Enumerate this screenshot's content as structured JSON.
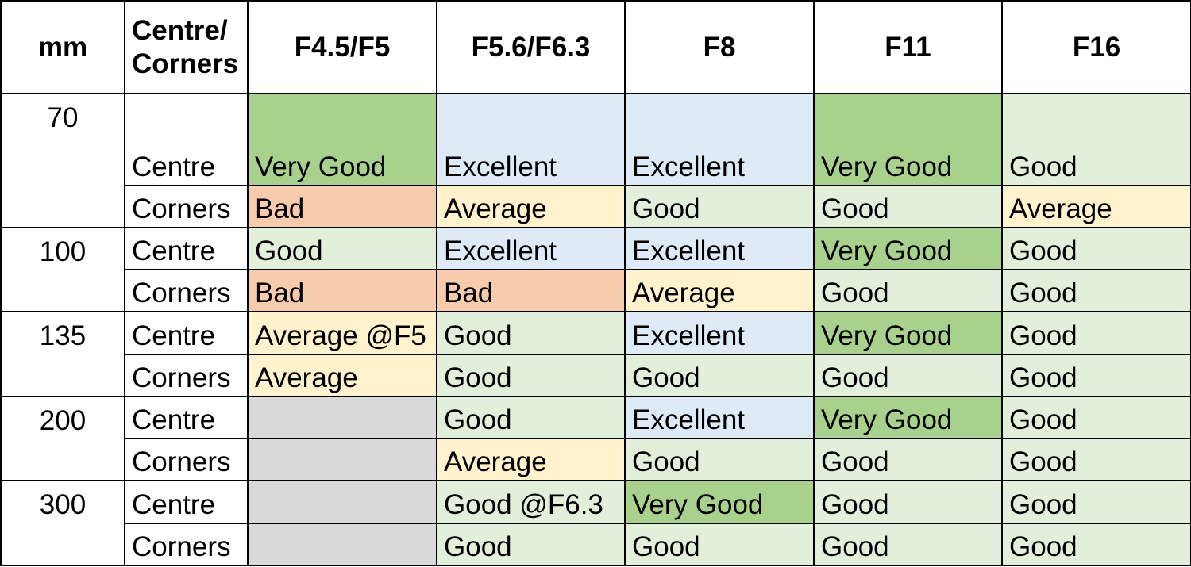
{
  "headers": [
    "mm",
    "Centre/\nCorners",
    "F4.5/F5",
    "F5.6/F6.3",
    "F8",
    "F11",
    "F16"
  ],
  "colors": {
    "Excellent": "#deebf7",
    "VeryGood": "#a9d18e",
    "Good": "#e2efda",
    "Average": "#fff2cc",
    "Bad": "#f8cbad",
    "None": "#d9d9d9"
  },
  "groups": [
    {
      "mm": "70",
      "rows": [
        {
          "position": "Centre",
          "cells": [
            {
              "text": "Very Good",
              "rating": "VeryGood"
            },
            {
              "text": "Excellent",
              "rating": "Excellent"
            },
            {
              "text": "Excellent",
              "rating": "Excellent"
            },
            {
              "text": "Very Good",
              "rating": "VeryGood"
            },
            {
              "text": "Good",
              "rating": "Good"
            }
          ]
        },
        {
          "position": "Corners",
          "cells": [
            {
              "text": "Bad",
              "rating": "Bad"
            },
            {
              "text": "Average",
              "rating": "Average"
            },
            {
              "text": "Good",
              "rating": "Good"
            },
            {
              "text": "Good",
              "rating": "Good"
            },
            {
              "text": "Average",
              "rating": "Average"
            }
          ]
        }
      ]
    },
    {
      "mm": "100",
      "rows": [
        {
          "position": "Centre",
          "cells": [
            {
              "text": "Good",
              "rating": "Good"
            },
            {
              "text": "Excellent",
              "rating": "Excellent"
            },
            {
              "text": "Excellent",
              "rating": "Excellent"
            },
            {
              "text": "Very Good",
              "rating": "VeryGood"
            },
            {
              "text": "Good",
              "rating": "Good"
            }
          ]
        },
        {
          "position": "Corners",
          "cells": [
            {
              "text": "Bad",
              "rating": "Bad"
            },
            {
              "text": "Bad",
              "rating": "Bad"
            },
            {
              "text": "Average",
              "rating": "Average"
            },
            {
              "text": "Good",
              "rating": "Good"
            },
            {
              "text": "Good",
              "rating": "Good"
            }
          ]
        }
      ]
    },
    {
      "mm": "135",
      "rows": [
        {
          "position": "Centre",
          "cells": [
            {
              "text": "Average @F5",
              "rating": "Average"
            },
            {
              "text": "Good",
              "rating": "Good"
            },
            {
              "text": "Excellent",
              "rating": "Excellent"
            },
            {
              "text": "Very Good",
              "rating": "VeryGood"
            },
            {
              "text": "Good",
              "rating": "Good"
            }
          ]
        },
        {
          "position": "Corners",
          "cells": [
            {
              "text": "Average",
              "rating": "Average"
            },
            {
              "text": "Good",
              "rating": "Good"
            },
            {
              "text": "Good",
              "rating": "Good"
            },
            {
              "text": "Good",
              "rating": "Good"
            },
            {
              "text": "Good",
              "rating": "Good"
            }
          ]
        }
      ]
    },
    {
      "mm": "200",
      "rows": [
        {
          "position": "Centre",
          "cells": [
            {
              "text": "",
              "rating": "None"
            },
            {
              "text": "Good",
              "rating": "Good"
            },
            {
              "text": "Excellent",
              "rating": "Excellent"
            },
            {
              "text": "Very Good",
              "rating": "VeryGood"
            },
            {
              "text": "Good",
              "rating": "Good"
            }
          ]
        },
        {
          "position": "Corners",
          "cells": [
            {
              "text": "",
              "rating": "None"
            },
            {
              "text": "Average",
              "rating": "Average"
            },
            {
              "text": "Good",
              "rating": "Good"
            },
            {
              "text": "Good",
              "rating": "Good"
            },
            {
              "text": "Good",
              "rating": "Good"
            }
          ]
        }
      ]
    },
    {
      "mm": "300",
      "rows": [
        {
          "position": "Centre",
          "cells": [
            {
              "text": "",
              "rating": "None"
            },
            {
              "text": "Good @F6.3",
              "rating": "Good"
            },
            {
              "text": "Very Good",
              "rating": "VeryGood"
            },
            {
              "text": "Good",
              "rating": "Good"
            },
            {
              "text": "Good",
              "rating": "Good"
            }
          ]
        },
        {
          "position": "Corners",
          "cells": [
            {
              "text": "",
              "rating": "None"
            },
            {
              "text": "Good",
              "rating": "Good"
            },
            {
              "text": "Good",
              "rating": "Good"
            },
            {
              "text": "Good",
              "rating": "Good"
            },
            {
              "text": "Good",
              "rating": "Good"
            }
          ]
        }
      ]
    }
  ]
}
